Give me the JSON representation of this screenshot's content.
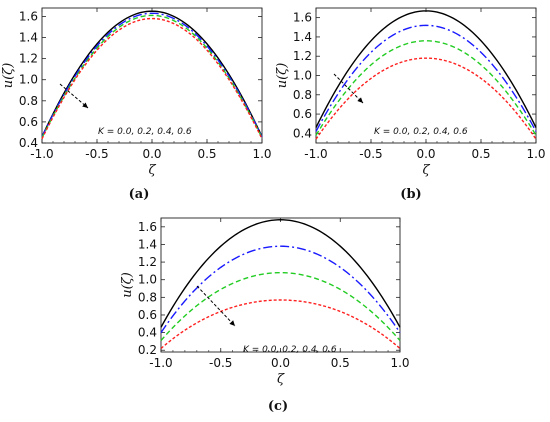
{
  "chart_data": [
    {
      "type": "line",
      "panel_label": "(a)",
      "xlabel": "ζ",
      "ylabel": "u(ζ)",
      "xlim": [
        -1.0,
        1.0
      ],
      "ylim": [
        0.4,
        1.68
      ],
      "xticks": [
        "-1.0",
        "-0.5",
        "0.0",
        "0.5",
        "1.0"
      ],
      "yticks": [
        "0.4",
        "0.6",
        "0.8",
        "1.0",
        "1.2",
        "1.4",
        "1.6"
      ],
      "annotation": "K = 0.0, 0.2, 0.4, 0.6",
      "series": [
        {
          "color": "#000000",
          "dash": "",
          "x": [
            -1.0,
            -0.5,
            0.0,
            0.5,
            1.0
          ],
          "values": [
            0.46,
            1.34,
            1.65,
            1.34,
            0.46
          ]
        },
        {
          "color": "#1a1aff",
          "dash": "9,3,2,3",
          "x": [
            -1.0,
            -0.5,
            0.0,
            0.5,
            1.0
          ],
          "values": [
            0.46,
            1.32,
            1.63,
            1.32,
            0.46
          ]
        },
        {
          "color": "#22cc22",
          "dash": "5,3",
          "x": [
            -1.0,
            -0.5,
            0.0,
            0.5,
            1.0
          ],
          "values": [
            0.45,
            1.3,
            1.61,
            1.3,
            0.45
          ]
        },
        {
          "color": "#ff2020",
          "dash": "3,2",
          "x": [
            -1.0,
            -0.5,
            0.0,
            0.5,
            1.0
          ],
          "values": [
            0.44,
            1.28,
            1.58,
            1.28,
            0.44
          ]
        }
      ]
    },
    {
      "type": "line",
      "panel_label": "(b)",
      "xlabel": "ζ",
      "ylabel": "u(ζ)",
      "xlim": [
        -1.0,
        1.0
      ],
      "ylim": [
        0.3,
        1.7
      ],
      "xticks": [
        "-1.0",
        "-0.5",
        "0.0",
        "0.5",
        "1.0"
      ],
      "yticks": [
        "0.4",
        "0.6",
        "0.8",
        "1.0",
        "1.2",
        "1.4",
        "1.6"
      ],
      "annotation": "K = 0.0, 0.2, 0.4, 0.6",
      "series": [
        {
          "color": "#000000",
          "dash": "",
          "x": [
            -1.0,
            -0.5,
            0.0,
            0.5,
            1.0
          ],
          "values": [
            0.46,
            1.36,
            1.67,
            1.36,
            0.46
          ]
        },
        {
          "color": "#1a1aff",
          "dash": "9,3,2,3",
          "x": [
            -1.0,
            -0.5,
            0.0,
            0.5,
            1.0
          ],
          "values": [
            0.42,
            1.24,
            1.52,
            1.24,
            0.42
          ]
        },
        {
          "color": "#22cc22",
          "dash": "5,3",
          "x": [
            -1.0,
            -0.5,
            0.0,
            0.5,
            1.0
          ],
          "values": [
            0.38,
            1.11,
            1.36,
            1.11,
            0.38
          ]
        },
        {
          "color": "#ff2020",
          "dash": "3,2",
          "x": [
            -1.0,
            -0.5,
            0.0,
            0.5,
            1.0
          ],
          "values": [
            0.34,
            0.97,
            1.18,
            0.97,
            0.34
          ]
        }
      ]
    },
    {
      "type": "line",
      "panel_label": "(c)",
      "xlabel": "ζ",
      "ylabel": "u(ζ)",
      "xlim": [
        -1.0,
        1.0
      ],
      "ylim": [
        0.18,
        1.7
      ],
      "xticks": [
        "-1.0",
        "-0.5",
        "0.0",
        "0.5",
        "1.0"
      ],
      "yticks": [
        "0.2",
        "0.4",
        "0.6",
        "0.8",
        "1.0",
        "1.2",
        "1.4",
        "1.6"
      ],
      "annotation": "K = 0.0, 0.2, 0.4, 0.6",
      "series": [
        {
          "color": "#000000",
          "dash": "",
          "x": [
            -1.0,
            -0.5,
            0.0,
            0.5,
            1.0
          ],
          "values": [
            0.46,
            1.38,
            1.68,
            1.38,
            0.46
          ]
        },
        {
          "color": "#1a1aff",
          "dash": "9,3,2,3",
          "x": [
            -1.0,
            -0.5,
            0.0,
            0.5,
            1.0
          ],
          "values": [
            0.4,
            1.14,
            1.38,
            1.14,
            0.4
          ]
        },
        {
          "color": "#22cc22",
          "dash": "5,3",
          "x": [
            -1.0,
            -0.5,
            0.0,
            0.5,
            1.0
          ],
          "values": [
            0.31,
            0.89,
            1.08,
            0.89,
            0.31
          ]
        },
        {
          "color": "#ff2020",
          "dash": "3,2",
          "x": [
            -1.0,
            -0.5,
            0.0,
            0.5,
            1.0
          ],
          "values": [
            0.22,
            0.64,
            0.77,
            0.64,
            0.22
          ]
        }
      ]
    }
  ]
}
